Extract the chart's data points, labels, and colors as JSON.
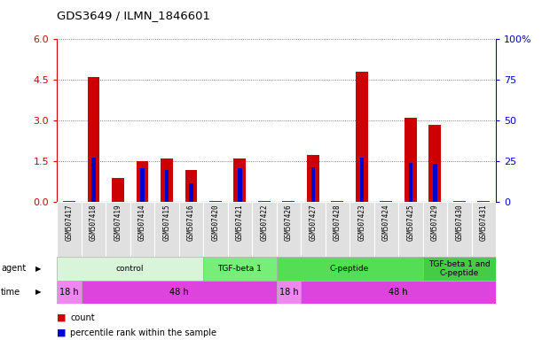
{
  "title": "GDS3649 / ILMN_1846601",
  "samples": [
    "GSM507417",
    "GSM507418",
    "GSM507419",
    "GSM507414",
    "GSM507415",
    "GSM507416",
    "GSM507420",
    "GSM507421",
    "GSM507422",
    "GSM507426",
    "GSM507427",
    "GSM507428",
    "GSM507423",
    "GSM507424",
    "GSM507425",
    "GSM507429",
    "GSM507430",
    "GSM507431"
  ],
  "count_values": [
    0.05,
    4.6,
    0.9,
    1.5,
    1.6,
    1.2,
    0.05,
    1.6,
    0.05,
    0.05,
    1.75,
    0.05,
    4.8,
    0.05,
    3.1,
    2.85,
    0.05,
    0.05
  ],
  "percentile_values": [
    0.05,
    1.65,
    0.05,
    1.25,
    1.2,
    0.7,
    0.05,
    1.25,
    0.05,
    0.05,
    1.3,
    0.05,
    1.65,
    0.05,
    1.45,
    1.4,
    0.05,
    0.05
  ],
  "ylim_left": [
    0,
    6
  ],
  "ylim_right": [
    0,
    100
  ],
  "yticks_left": [
    0,
    1.5,
    3,
    4.5,
    6
  ],
  "yticks_right": [
    0,
    25,
    50,
    75,
    100
  ],
  "count_color": "#cc0000",
  "percentile_color": "#0000cc",
  "bar_width": 0.5,
  "agent_groups": [
    {
      "label": "control",
      "start": 0,
      "end": 5,
      "color": "#d9f5d9"
    },
    {
      "label": "TGF-beta 1",
      "start": 6,
      "end": 8,
      "color": "#77ee77"
    },
    {
      "label": "C-peptide",
      "start": 9,
      "end": 14,
      "color": "#55dd55"
    },
    {
      "label": "TGF-beta 1 and\nC-peptide",
      "start": 15,
      "end": 17,
      "color": "#44cc44"
    }
  ],
  "time_groups": [
    {
      "label": "18 h",
      "start": 0,
      "end": 0,
      "color": "#ee88ee"
    },
    {
      "label": "48 h",
      "start": 1,
      "end": 8,
      "color": "#dd44dd"
    },
    {
      "label": "18 h",
      "start": 9,
      "end": 9,
      "color": "#ee88ee"
    },
    {
      "label": "48 h",
      "start": 10,
      "end": 17,
      "color": "#dd44dd"
    }
  ],
  "left_axis_color": "#cc0000",
  "right_axis_color": "#0000cc",
  "grid_color": "#555555",
  "spine_color": "#000000"
}
